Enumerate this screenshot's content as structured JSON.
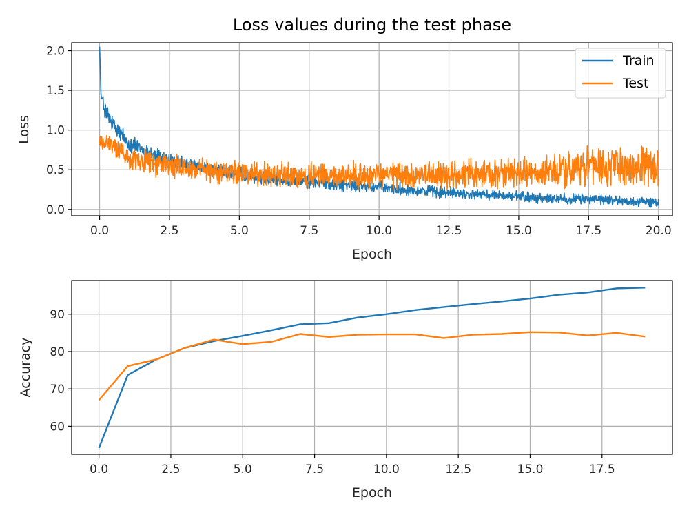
{
  "chart_data": [
    {
      "type": "line",
      "title": "Loss values during the test phase",
      "xlabel": "Epoch",
      "ylabel": "Loss",
      "xlim": [
        -1,
        20.5
      ],
      "ylim": [
        -0.08,
        2.1
      ],
      "x_ticks": [
        0.0,
        2.5,
        5.0,
        7.5,
        10.0,
        12.5,
        15.0,
        17.5,
        20.0
      ],
      "x_tick_labels": [
        "0.0",
        "2.5",
        "5.0",
        "7.5",
        "10.0",
        "12.5",
        "15.0",
        "17.5",
        "20.0"
      ],
      "y_ticks": [
        0.0,
        0.5,
        1.0,
        1.5,
        2.0
      ],
      "y_tick_labels": [
        "0.0",
        "0.5",
        "1.0",
        "1.5",
        "2.0"
      ],
      "grid": true,
      "legend_position": "top-right",
      "series": [
        {
          "name": "Train",
          "color": "#1f77b4",
          "x": [
            0,
            0.05,
            0.1,
            0.25,
            0.5,
            0.75,
            1.0,
            1.5,
            2.0,
            2.5,
            3.0,
            3.5,
            4.0,
            4.5,
            5.0,
            5.5,
            6.0,
            6.5,
            7.0,
            7.5,
            8.0,
            8.5,
            9.0,
            9.5,
            10.0,
            10.5,
            11.0,
            11.5,
            12.0,
            12.5,
            13.0,
            13.5,
            14.0,
            14.5,
            15.0,
            15.5,
            16.0,
            16.5,
            17.0,
            17.5,
            18.0,
            18.5,
            19.0,
            19.5,
            20.0
          ],
          "values": [
            2.05,
            1.45,
            1.35,
            1.2,
            1.05,
            0.95,
            0.85,
            0.75,
            0.68,
            0.62,
            0.57,
            0.53,
            0.5,
            0.47,
            0.44,
            0.42,
            0.4,
            0.38,
            0.36,
            0.35,
            0.34,
            0.32,
            0.3,
            0.29,
            0.28,
            0.26,
            0.25,
            0.24,
            0.22,
            0.21,
            0.2,
            0.19,
            0.18,
            0.17,
            0.16,
            0.15,
            0.14,
            0.14,
            0.13,
            0.13,
            0.12,
            0.11,
            0.1,
            0.1,
            0.08
          ],
          "noise_amplitude": [
            0,
            0,
            0.15,
            0.15,
            0.15,
            0.15,
            0.15,
            0.12,
            0.12,
            0.12,
            0.12,
            0.11,
            0.11,
            0.11,
            0.11,
            0.1,
            0.1,
            0.1,
            0.1,
            0.1,
            0.1,
            0.1,
            0.09,
            0.09,
            0.09,
            0.09,
            0.09,
            0.09,
            0.09,
            0.09,
            0.08,
            0.08,
            0.08,
            0.08,
            0.08,
            0.08,
            0.08,
            0.08,
            0.08,
            0.08,
            0.08,
            0.07,
            0.07,
            0.07,
            0.07
          ]
        },
        {
          "name": "Test",
          "color": "#ff7f0e",
          "x": [
            0,
            0.5,
            1.0,
            1.5,
            2.0,
            2.5,
            3.0,
            3.5,
            4.0,
            4.5,
            5.0,
            5.5,
            6.0,
            6.5,
            7.0,
            7.5,
            8.0,
            8.5,
            9.0,
            9.5,
            10.0,
            10.5,
            11.0,
            11.5,
            12.0,
            12.5,
            13.0,
            13.5,
            14.0,
            14.5,
            15.0,
            15.5,
            16.0,
            16.5,
            17.0,
            17.5,
            18.0,
            18.5,
            19.0,
            19.5,
            20.0
          ],
          "values": [
            0.85,
            0.8,
            0.68,
            0.62,
            0.58,
            0.55,
            0.52,
            0.5,
            0.48,
            0.47,
            0.46,
            0.45,
            0.44,
            0.44,
            0.43,
            0.43,
            0.42,
            0.42,
            0.42,
            0.42,
            0.42,
            0.43,
            0.43,
            0.43,
            0.43,
            0.44,
            0.44,
            0.44,
            0.45,
            0.45,
            0.46,
            0.46,
            0.47,
            0.48,
            0.5,
            0.55,
            0.52,
            0.53,
            0.55,
            0.56,
            0.58
          ],
          "noise_amplitude": [
            0.15,
            0.15,
            0.18,
            0.18,
            0.18,
            0.18,
            0.18,
            0.18,
            0.18,
            0.18,
            0.18,
            0.18,
            0.18,
            0.18,
            0.18,
            0.18,
            0.18,
            0.18,
            0.2,
            0.2,
            0.2,
            0.2,
            0.2,
            0.2,
            0.2,
            0.22,
            0.22,
            0.22,
            0.22,
            0.22,
            0.22,
            0.22,
            0.24,
            0.24,
            0.26,
            0.3,
            0.28,
            0.28,
            0.3,
            0.3,
            0.32
          ]
        }
      ]
    },
    {
      "type": "line",
      "title": "",
      "xlabel": "Epoch",
      "ylabel": "Accuracy",
      "xlim": [
        -0.95,
        19.95
      ],
      "ylim": [
        52.5,
        99
      ],
      "x_ticks": [
        0.0,
        2.5,
        5.0,
        7.5,
        10.0,
        12.5,
        15.0,
        17.5
      ],
      "x_tick_labels": [
        "0.0",
        "2.5",
        "5.0",
        "7.5",
        "10.0",
        "12.5",
        "15.0",
        "17.5"
      ],
      "y_ticks": [
        60,
        70,
        80,
        90
      ],
      "y_tick_labels": [
        "60",
        "70",
        "80",
        "90"
      ],
      "grid": true,
      "x": [
        0,
        1,
        2,
        3,
        4,
        5,
        6,
        7,
        8,
        9,
        10,
        11,
        12,
        13,
        14,
        15,
        16,
        17,
        18,
        19
      ],
      "series": [
        {
          "name": "Train",
          "color": "#1f77b4",
          "values": [
            54.2,
            73.7,
            77.9,
            81.0,
            82.8,
            84.2,
            85.7,
            87.3,
            87.6,
            89.1,
            90.0,
            91.1,
            91.9,
            92.7,
            93.4,
            94.2,
            95.2,
            95.8,
            96.9,
            97.1
          ]
        },
        {
          "name": "Test",
          "color": "#ff7f0e",
          "values": [
            67.0,
            76.1,
            77.9,
            81.0,
            83.2,
            82.0,
            82.6,
            84.7,
            83.9,
            84.5,
            84.6,
            84.6,
            83.6,
            84.5,
            84.7,
            85.2,
            85.1,
            84.3,
            85.0,
            84.0
          ]
        }
      ]
    }
  ]
}
